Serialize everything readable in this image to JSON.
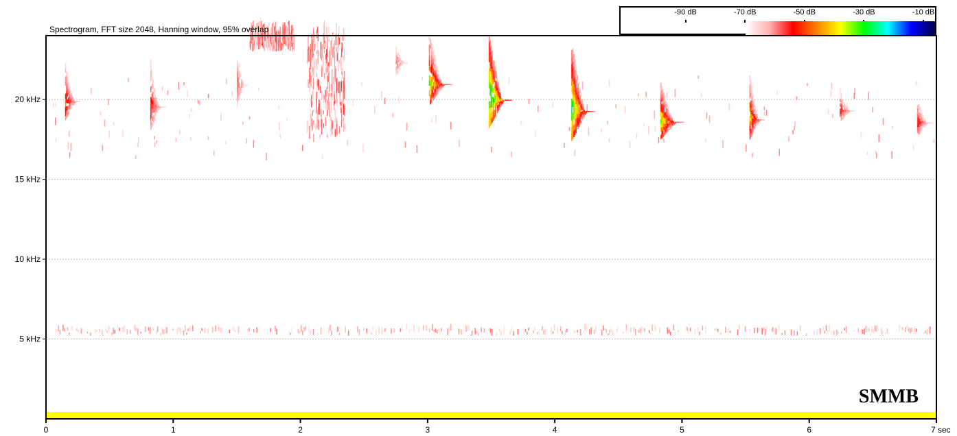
{
  "chart_data": {
    "type": "heatmap",
    "title": "Spectrogram, FFT size 2048, Hanning window, 95% overlap",
    "xlabel": "",
    "ylabel": "",
    "x_unit": "sec",
    "xlim": [
      0,
      7
    ],
    "ylim_khz": [
      0,
      24
    ],
    "x_ticks": [
      "0",
      "1",
      "2",
      "3",
      "4",
      "5",
      "6",
      "7 sec"
    ],
    "y_ticks": [
      {
        "value": 5,
        "label": "5 kHz"
      },
      {
        "value": 10,
        "label": "10 kHz"
      },
      {
        "value": 15,
        "label": "15 kHz"
      },
      {
        "value": 20,
        "label": "20 kHz"
      }
    ],
    "grid": true,
    "colorbar": {
      "labels": [
        "-90 dB",
        "-70 dB",
        "-50 dB",
        "-30 dB",
        "-10 dB"
      ],
      "label_values_db": [
        -90,
        -70,
        -50,
        -30,
        -10
      ],
      "colors": [
        "#ffffff",
        "#ffb3b3",
        "#ff0000",
        "#ff8000",
        "#ffff00",
        "#00ff00",
        "#00ffff",
        "#0000ff",
        "#00004d"
      ]
    },
    "calls": [
      {
        "t": 0.15,
        "f_low": 18.7,
        "f_high": 22.5,
        "peak_db": -40
      },
      {
        "t": 0.82,
        "f_low": 18.1,
        "f_high": 22.8,
        "peak_db": -45
      },
      {
        "t": 1.5,
        "f_low": 19.5,
        "f_high": 24.0,
        "peak_db": -55
      },
      {
        "t": 2.75,
        "f_low": 21.5,
        "f_high": 24.0,
        "peak_db": -55
      },
      {
        "t": 3.01,
        "f_low": 19.6,
        "f_high": 24.0,
        "peak_db": -30
      },
      {
        "t": 3.48,
        "f_low": 18.2,
        "f_high": 24.0,
        "peak_db": -20
      },
      {
        "t": 4.13,
        "f_low": 17.4,
        "f_high": 23.5,
        "peak_db": -25
      },
      {
        "t": 4.83,
        "f_low": 17.5,
        "f_high": 21.0,
        "peak_db": -30
      },
      {
        "t": 5.53,
        "f_low": 17.5,
        "f_high": 21.5,
        "peak_db": -35
      },
      {
        "t": 6.24,
        "f_low": 18.6,
        "f_high": 20.8,
        "peak_db": -45
      },
      {
        "t": 6.85,
        "f_low": 17.7,
        "f_high": 20.4,
        "peak_db": -45
      }
    ],
    "noise_bursts": [
      {
        "t_start": 2.05,
        "t_end": 2.35,
        "f_low": 17.5,
        "f_high": 24.0,
        "peak_db": -55
      },
      {
        "t_start": 1.6,
        "t_end": 1.95,
        "f_low": 23.0,
        "f_high": 24.0,
        "peak_db": -55
      }
    ],
    "background_band": {
      "f_low": 5.2,
      "f_high": 5.7,
      "peak_db": -60
    },
    "baseline_band": {
      "f_low": 0.0,
      "f_high": 0.3,
      "color": "#ffff00"
    }
  },
  "watermark": "SMMB"
}
